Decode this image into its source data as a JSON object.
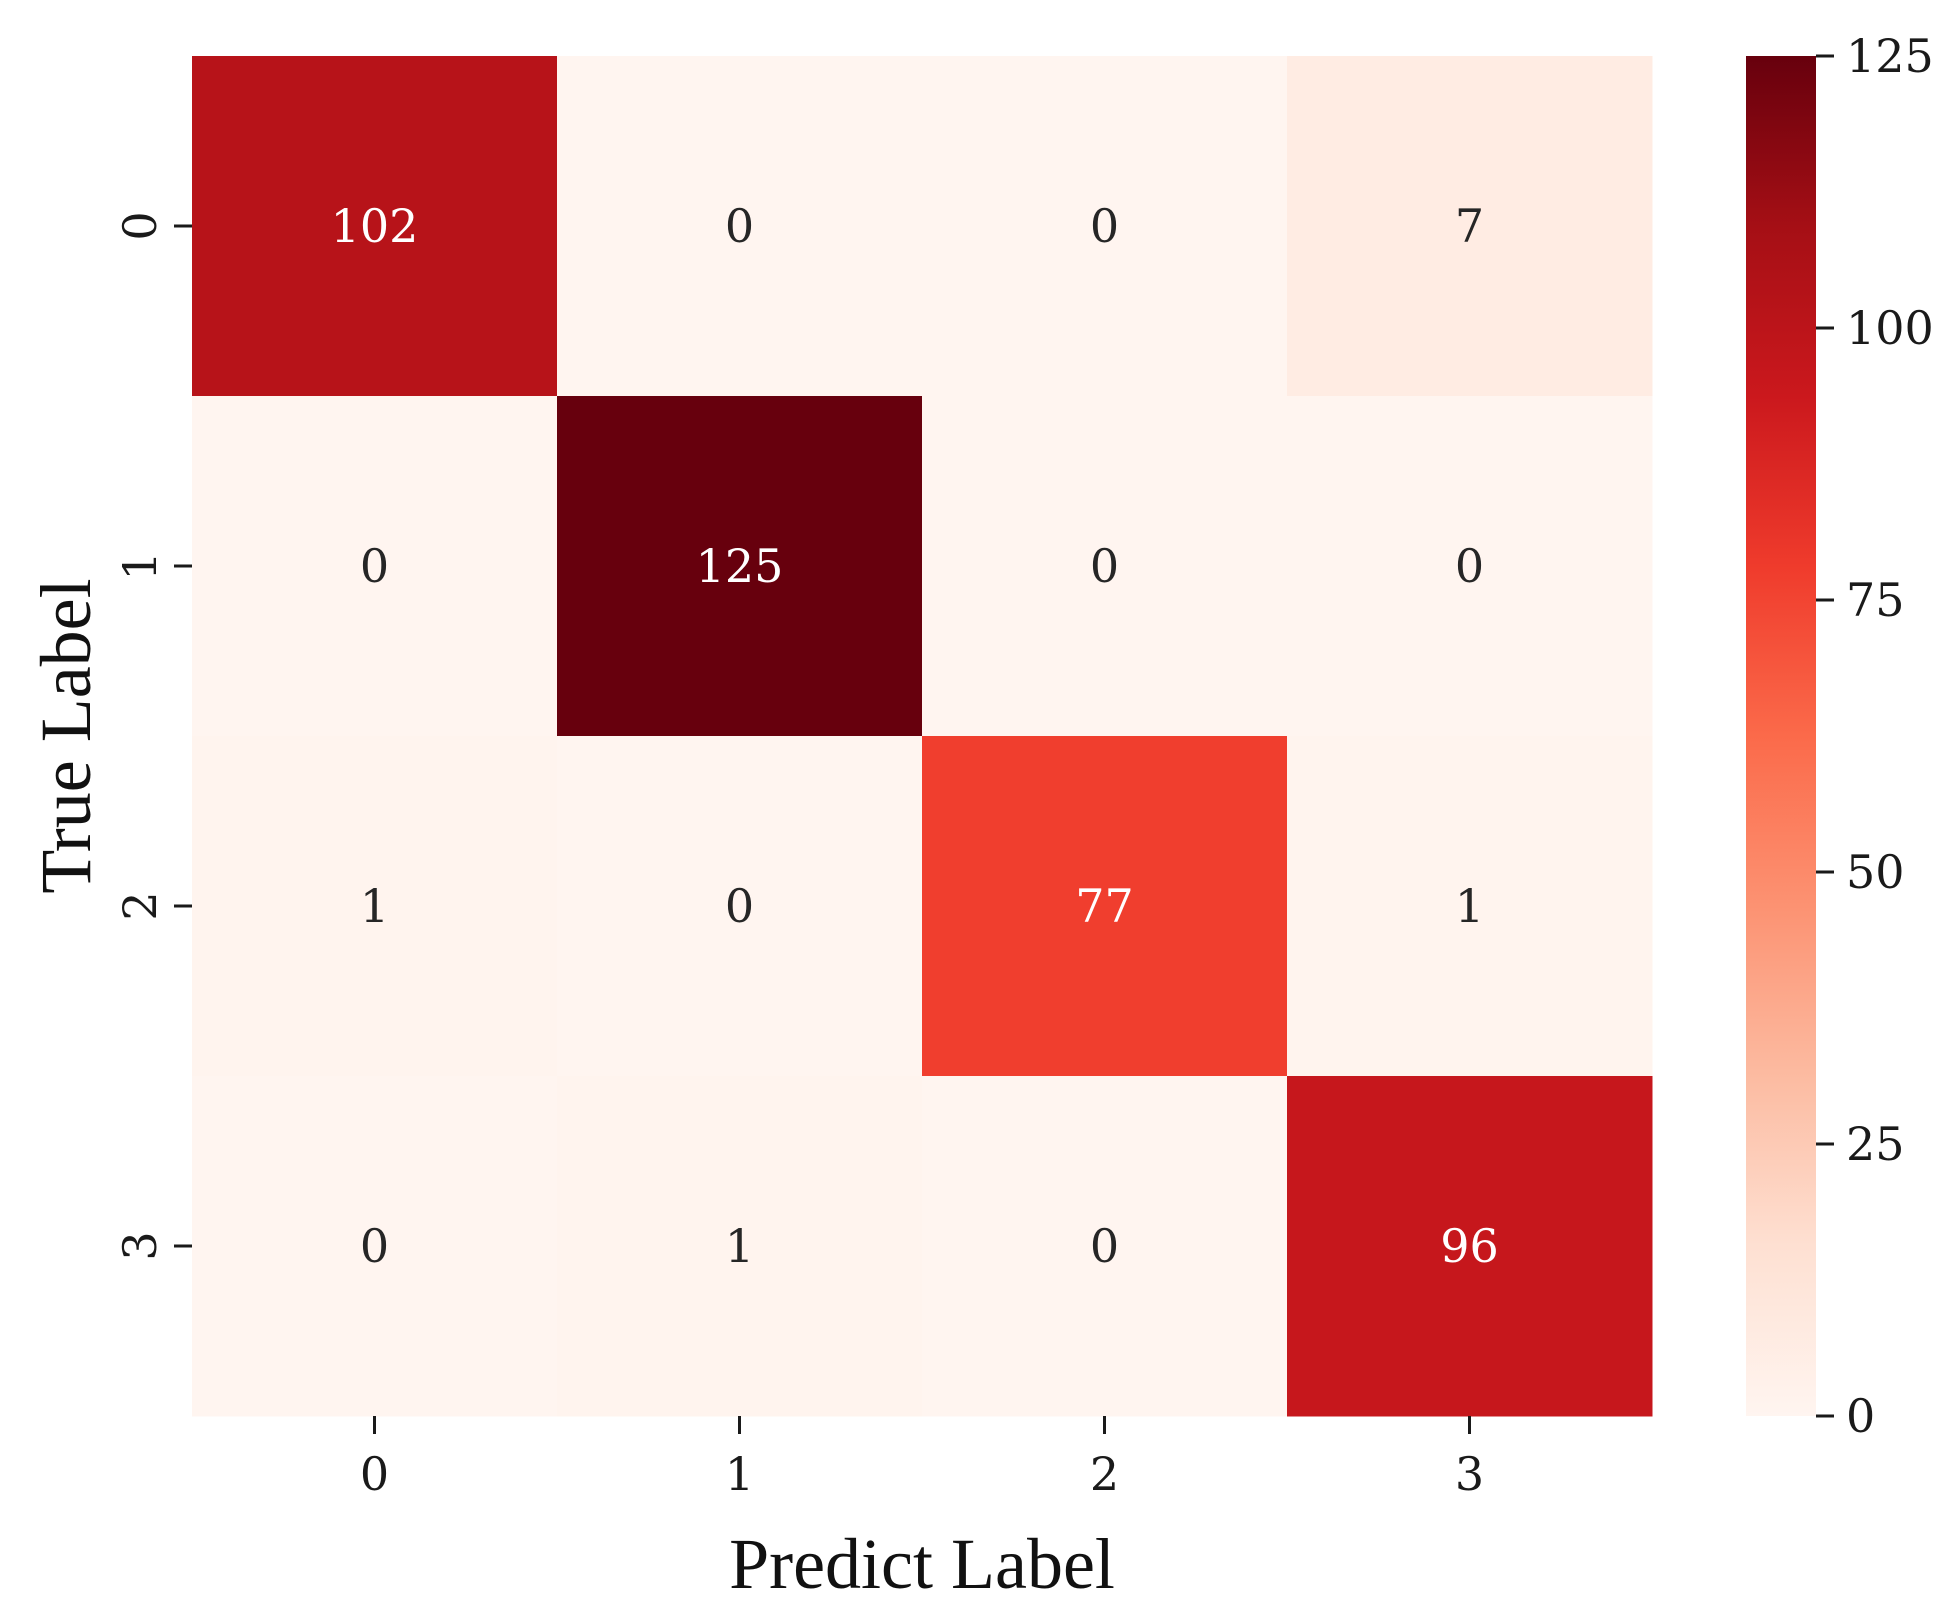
{
  "chart_data": {
    "type": "heatmap",
    "xlabel": "Predict Label",
    "ylabel": "True Label",
    "x_categories": [
      "0",
      "1",
      "2",
      "3"
    ],
    "y_categories": [
      "0",
      "1",
      "2",
      "3"
    ],
    "matrix": [
      [
        102,
        0,
        0,
        7
      ],
      [
        0,
        125,
        0,
        0
      ],
      [
        1,
        0,
        77,
        1
      ],
      [
        0,
        1,
        0,
        96
      ]
    ],
    "colorbar": {
      "colormap": "Reds",
      "range": [
        0,
        125
      ],
      "ticks": [
        0,
        25,
        50,
        75,
        100,
        125
      ],
      "tick_labels": [
        "0",
        "25",
        "50",
        "75",
        "100",
        "125"
      ]
    },
    "grid": false
  }
}
